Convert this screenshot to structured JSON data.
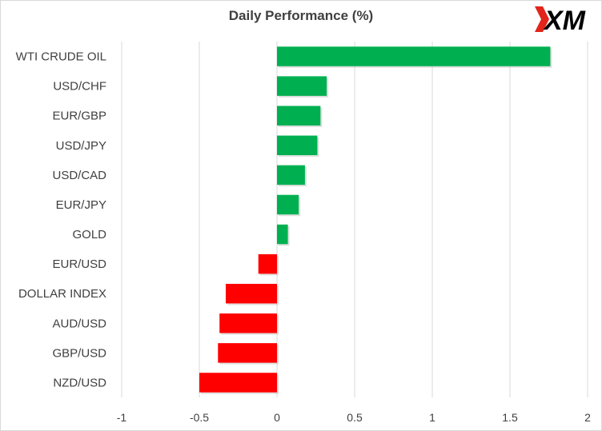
{
  "logo": {
    "text": "XM",
    "colors": {
      "mark": "#e1251b",
      "text": "#000000"
    }
  },
  "chart_data": {
    "type": "bar",
    "orientation": "horizontal",
    "title": "Daily Performance  (%)",
    "xlabel": "",
    "ylabel": "",
    "xlim": [
      -1,
      2
    ],
    "xticks": [
      -1,
      -0.5,
      0,
      0.5,
      1,
      1.5,
      2
    ],
    "tick_labels": [
      "-1",
      "-0.5",
      "0",
      "0.5",
      "1",
      "1.5",
      "2"
    ],
    "grid": "vertical",
    "legend": "none",
    "categories": [
      "WTI CRUDE OIL",
      "USD/CHF",
      "EUR/GBP",
      "USD/JPY",
      "USD/CAD",
      "EUR/JPY",
      "GOLD",
      "EUR/USD",
      "DOLLAR INDEX",
      "AUD/USD",
      "GBP/USD",
      "NZD/USD"
    ],
    "values": [
      1.76,
      0.32,
      0.28,
      0.26,
      0.18,
      0.14,
      0.07,
      -0.12,
      -0.33,
      -0.37,
      -0.38,
      -0.5
    ],
    "colors": {
      "positive": "#00b050",
      "negative": "#ff0000",
      "grid": "#d9d9d9",
      "text": "#404040"
    }
  }
}
